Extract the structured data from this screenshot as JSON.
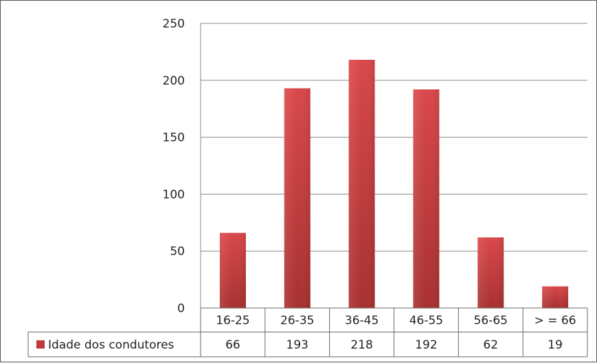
{
  "chart_data": {
    "type": "bar",
    "title": "",
    "xlabel": "",
    "ylabel": "",
    "categories": [
      "16-25",
      "26-35",
      "36-45",
      "46-55",
      "56-65",
      "> = 66"
    ],
    "series": [
      {
        "name": "Idade dos condutores",
        "values": [
          66,
          193,
          218,
          192,
          62,
          19
        ],
        "color": "#c0393b"
      }
    ],
    "ylim": [
      0,
      250
    ],
    "yticks": [
      0,
      50,
      100,
      150,
      200,
      250
    ],
    "grid": true,
    "legend": "data-table",
    "data_table": true
  }
}
